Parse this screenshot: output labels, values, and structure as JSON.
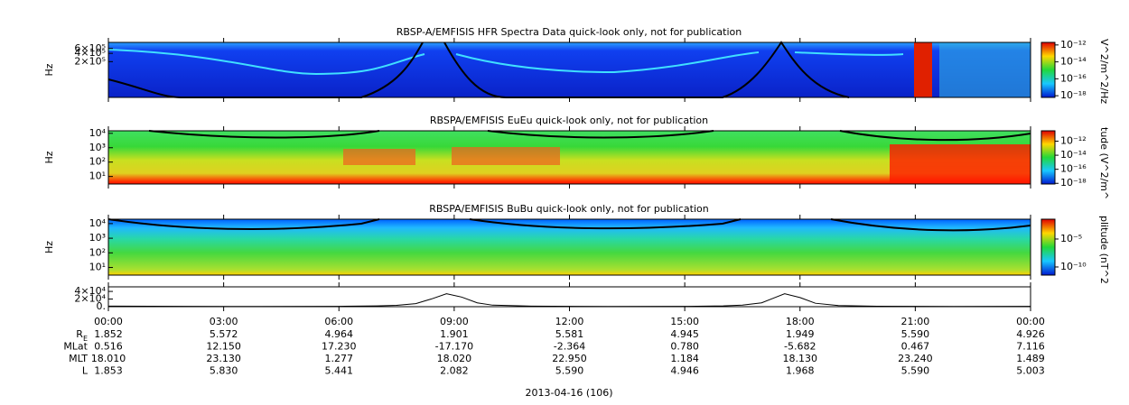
{
  "chart_data": [
    {
      "type": "spectrogram",
      "title": "RBSP-A/EMFISIS  HFR Spectra Data quick-look only, not for publication",
      "ylabel": "Hz",
      "ylog": true,
      "ylim": [
        10000,
        1000000
      ],
      "yticks": [
        {
          "value": 200000,
          "label": "2×10⁵"
        },
        {
          "value": 400000,
          "label": "4×10⁵"
        },
        {
          "value": 600000,
          "label": "6×10⁵"
        }
      ],
      "colorbar": {
        "label": "V^2/m^2/Hz",
        "lim": [
          6.3e-19,
          2e-12
        ],
        "ticks": [
          {
            "value": 1e-12,
            "label": "10⁻¹²"
          },
          {
            "value": 1e-14,
            "label": "10⁻¹⁴"
          },
          {
            "value": 1e-16,
            "label": "10⁻¹⁶"
          },
          {
            "value": 1e-18,
            "label": "10⁻¹⁸"
          }
        ]
      }
    },
    {
      "type": "spectrogram",
      "title": "RBSPA/EMFISIS  EuEu quick-look only, not for publication",
      "ylabel": "Hz",
      "ylog": true,
      "ylim": [
        3,
        15000
      ],
      "yticks": [
        {
          "value": 10000,
          "label": "10⁴"
        },
        {
          "value": 1000,
          "label": "10³"
        },
        {
          "value": 100,
          "label": "10²"
        },
        {
          "value": 10,
          "label": "10¹"
        }
      ],
      "colorbar": {
        "label": "tude (V^2/m^",
        "lim": [
          8e-19,
          3e-11
        ],
        "ticks": [
          {
            "value": 1e-12,
            "label": "10⁻¹²"
          },
          {
            "value": 1e-14,
            "label": "10⁻¹⁴"
          },
          {
            "value": 1e-16,
            "label": "10⁻¹⁶"
          },
          {
            "value": 1e-18,
            "label": "10⁻¹⁸"
          }
        ]
      }
    },
    {
      "type": "spectrogram",
      "title": "RBSPA/EMFISIS  BuBu quick-look only, not for publication",
      "ylabel": "Hz",
      "ylog": true,
      "ylim": [
        3,
        20000
      ],
      "yticks": [
        {
          "value": 10000,
          "label": "10⁴"
        },
        {
          "value": 1000,
          "label": "10³"
        },
        {
          "value": 100,
          "label": "10²"
        },
        {
          "value": 10,
          "label": "10¹"
        }
      ],
      "colorbar": {
        "label": "plitude (nT^2",
        "lim": [
          3.5e-12,
          0.035
        ],
        "ticks": [
          {
            "value": 1e-05,
            "label": "10⁻⁵"
          },
          {
            "value": 1e-10,
            "label": "10⁻¹⁰"
          }
        ]
      }
    },
    {
      "type": "line",
      "ylim": [
        0,
        52000
      ],
      "yticks": [
        {
          "value": 40000,
          "label": "4×10⁴"
        },
        {
          "value": 20000,
          "label": "2×10⁴"
        },
        {
          "value": 0,
          "label": "0."
        }
      ],
      "x": [
        0,
        2,
        4,
        6,
        7,
        7.5,
        8,
        8.4,
        8.8,
        9.2,
        9.6,
        10,
        11,
        13,
        15,
        16,
        16.5,
        17,
        17.3,
        17.6,
        18,
        18.4,
        19,
        20,
        22,
        24
      ],
      "values": [
        1500,
        800,
        600,
        1000,
        2000,
        3500,
        8000,
        20000,
        34000,
        25000,
        10000,
        4000,
        1500,
        600,
        800,
        2000,
        4000,
        10000,
        22000,
        34000,
        24000,
        9000,
        3000,
        1200,
        500,
        800
      ],
      "color": "#000000"
    }
  ],
  "xaxis": {
    "xlim": [
      0,
      24
    ],
    "xlabel": "2013-04-16 (106)",
    "xticks": [
      {
        "value": 0,
        "label": "00:00"
      },
      {
        "value": 3,
        "label": "03:00"
      },
      {
        "value": 6,
        "label": "06:00"
      },
      {
        "value": 9,
        "label": "09:00"
      },
      {
        "value": 12,
        "label": "12:00"
      },
      {
        "value": 15,
        "label": "15:00"
      },
      {
        "value": 18,
        "label": "18:00"
      },
      {
        "value": 21,
        "label": "21:00"
      },
      {
        "value": 24,
        "label": "00:00"
      }
    ]
  },
  "ephemeris": [
    {
      "label": "R",
      "label_sub": "E",
      "values": [
        "1.852",
        "5.572",
        "4.964",
        "1.901",
        "5.581",
        "4.945",
        "1.949",
        "5.590",
        "4.926"
      ]
    },
    {
      "label": "MLat",
      "values": [
        "0.516",
        "12.150",
        "17.230",
        "-17.170",
        "-2.364",
        "0.780",
        "-5.682",
        "0.467",
        "7.116"
      ]
    },
    {
      "label": "MLT",
      "values": [
        "18.010",
        "23.130",
        "1.277",
        "18.020",
        "22.950",
        "1.184",
        "18.130",
        "23.240",
        "1.489"
      ]
    },
    {
      "label": "L",
      "values": [
        "1.853",
        "5.830",
        "5.441",
        "2.082",
        "5.590",
        "4.946",
        "1.968",
        "5.590",
        "5.003"
      ]
    }
  ]
}
